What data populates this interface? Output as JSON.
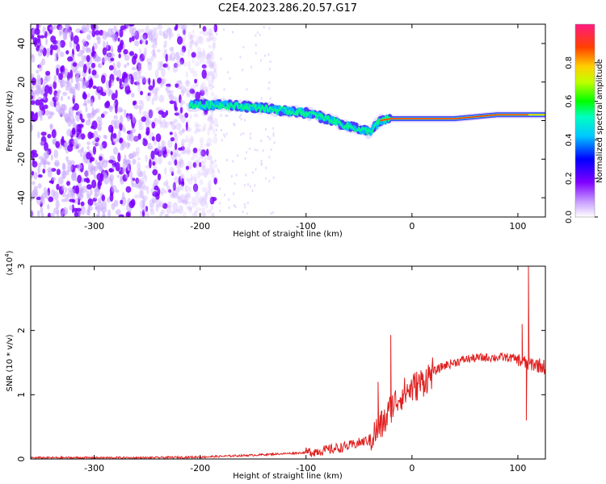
{
  "title": "C2E4.2023.286.20.57.G17",
  "colors": {
    "snr_line": "#e02020",
    "spectrogram_noise": "#7a00ff",
    "colormap": [
      "#ffffff",
      "#7f00ff",
      "#0000ff",
      "#00ffff",
      "#00ff00",
      "#ffff00",
      "#ff8000",
      "#ff0000",
      "#ff0066"
    ]
  },
  "chart_data": [
    {
      "type": "heatmap",
      "title": "C2E4.2023.286.20.57.G17",
      "xlabel": "Height of straight line (km)",
      "ylabel": "Frequency (Hz)",
      "xlim": [
        -360,
        126
      ],
      "ylim": [
        -50,
        50
      ],
      "xticks": [
        -300,
        -200,
        -100,
        0,
        100
      ],
      "yticks": [
        -40,
        -20,
        0,
        20,
        40
      ],
      "colorbar": {
        "label": "Normalized spectral amplitude",
        "range": [
          0,
          1
        ],
        "ticks": [
          "0.0",
          "0.2",
          "0.4",
          "0.6",
          "0.8"
        ]
      },
      "signal_track": {
        "x": [
          -210,
          -180,
          -150,
          -120,
          -100,
          -80,
          -60,
          -40,
          -30,
          -20,
          0,
          40,
          80,
          100,
          126
        ],
        "freq": [
          8,
          8,
          7,
          5,
          4,
          1,
          -3,
          -6,
          0,
          1,
          1,
          1,
          3,
          3,
          3
        ]
      },
      "grid": false
    },
    {
      "type": "line",
      "xlabel": "Height of straight line (km)",
      "ylabel": "SNR (10 * v/v)",
      "y_multiplier": "(x10^4)",
      "xlim": [
        -360,
        126
      ],
      "ylim": [
        0,
        3
      ],
      "xticks": [
        -300,
        -200,
        -100,
        0,
        100
      ],
      "yticks": [
        0,
        1,
        2,
        3
      ],
      "series": [
        {
          "x": [
            -360,
            -300,
            -250,
            -200,
            -150,
            -100,
            -80,
            -60,
            -50,
            -40,
            -30,
            -25,
            -20,
            -15,
            -10,
            0,
            10,
            20,
            30,
            40,
            50,
            60,
            70,
            80,
            90,
            95,
            100,
            105,
            110,
            115,
            120,
            126
          ],
          "y": [
            0.02,
            0.02,
            0.02,
            0.03,
            0.06,
            0.1,
            0.14,
            0.2,
            0.25,
            0.3,
            0.5,
            0.6,
            0.8,
            0.9,
            1.0,
            1.1,
            1.2,
            1.35,
            1.45,
            1.5,
            1.55,
            1.57,
            1.58,
            1.58,
            1.58,
            1.57,
            1.55,
            1.5,
            1.48,
            1.48,
            1.46,
            1.43
          ],
          "spikes": [
            {
              "x": -20,
              "y": 1.93
            },
            {
              "x": -32,
              "y": 1.2
            },
            {
              "x": 104,
              "y": 2.1
            },
            {
              "x": 110,
              "y": 3.0
            },
            {
              "x": 108,
              "y": 0.6
            }
          ]
        }
      ]
    }
  ]
}
